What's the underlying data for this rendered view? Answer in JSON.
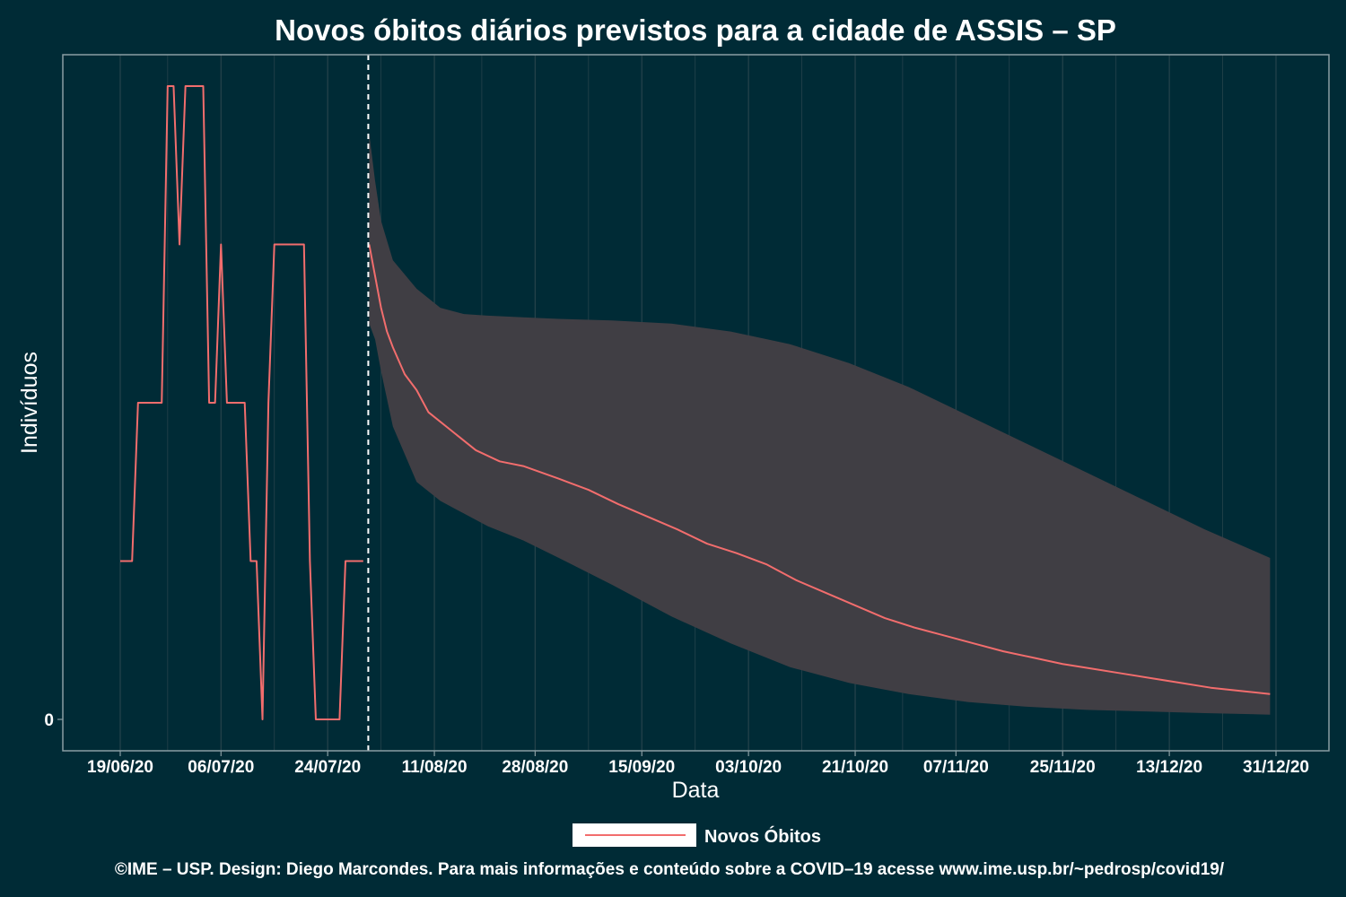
{
  "chart_data": {
    "type": "line",
    "title": "Novos óbitos diários previstos para a cidade de ASSIS – SP",
    "xlabel": "Data",
    "ylabel": "Indivíduos",
    "x_range": [
      "2020-06-19",
      "2020-12-31"
    ],
    "y_range": [
      0,
      4
    ],
    "x_ticks": [
      "19/06/20",
      "06/07/20",
      "24/07/20",
      "11/08/20",
      "28/08/20",
      "15/09/20",
      "03/10/20",
      "21/10/20",
      "07/11/20",
      "25/11/20",
      "13/12/20",
      "31/12/20"
    ],
    "y_ticks": [
      "0"
    ],
    "forecast_start": "2020-07-31",
    "legend": {
      "position": "bottom",
      "entries": [
        "Novos Óbitos"
      ]
    },
    "grid": true,
    "colors": {
      "background": "#002b36",
      "line": "#f26d6d",
      "band": "#403e44",
      "axis": "#8a9ea3",
      "grid": "#26434c"
    },
    "series": [
      {
        "name": "Novos Óbitos",
        "kind": "observed",
        "x": [
          "2020-06-19",
          "2020-06-21",
          "2020-06-22",
          "2020-06-26",
          "2020-06-27",
          "2020-06-28",
          "2020-06-29",
          "2020-06-30",
          "2020-07-03",
          "2020-07-04",
          "2020-07-05",
          "2020-07-06",
          "2020-07-07",
          "2020-07-10",
          "2020-07-11",
          "2020-07-12",
          "2020-07-13",
          "2020-07-14",
          "2020-07-15",
          "2020-07-20",
          "2020-07-21",
          "2020-07-22",
          "2020-07-26",
          "2020-07-27",
          "2020-07-30"
        ],
        "y": [
          1,
          1,
          2,
          2,
          4,
          4,
          3,
          4,
          4,
          2,
          2,
          3,
          2,
          2,
          1,
          1,
          0,
          2,
          3,
          3,
          1,
          0,
          0,
          1,
          1
        ]
      },
      {
        "name": "Novos Óbitos",
        "kind": "forecast",
        "x": [
          "2020-07-31",
          "2020-08-01",
          "2020-08-02",
          "2020-08-03",
          "2020-08-04",
          "2020-08-06",
          "2020-08-08",
          "2020-08-10",
          "2020-08-14",
          "2020-08-18",
          "2020-08-22",
          "2020-08-26",
          "2020-09-01",
          "2020-09-06",
          "2020-09-11",
          "2020-09-16",
          "2020-09-21",
          "2020-09-26",
          "2020-10-01",
          "2020-10-06",
          "2020-10-11",
          "2020-10-16",
          "2020-10-21",
          "2020-10-26",
          "2020-10-31",
          "2020-11-05",
          "2020-11-10",
          "2020-11-15",
          "2020-11-20",
          "2020-11-25",
          "2020-11-30",
          "2020-12-05",
          "2020-12-10",
          "2020-12-15",
          "2020-12-20",
          "2020-12-25",
          "2020-12-30"
        ],
        "y": [
          3.0,
          2.8,
          2.6,
          2.45,
          2.35,
          2.18,
          2.08,
          1.94,
          1.82,
          1.7,
          1.63,
          1.6,
          1.52,
          1.45,
          1.36,
          1.28,
          1.2,
          1.11,
          1.05,
          0.98,
          0.88,
          0.8,
          0.72,
          0.64,
          0.58,
          0.53,
          0.48,
          0.43,
          0.39,
          0.35,
          0.32,
          0.29,
          0.26,
          0.23,
          0.2,
          0.18,
          0.16
        ]
      }
    ],
    "band": {
      "x": [
        "2020-07-31",
        "2020-08-01",
        "2020-08-02",
        "2020-08-04",
        "2020-08-08",
        "2020-08-12",
        "2020-08-16",
        "2020-08-20",
        "2020-08-26",
        "2020-09-01",
        "2020-09-10",
        "2020-09-20",
        "2020-09-30",
        "2020-10-10",
        "2020-10-20",
        "2020-10-30",
        "2020-11-09",
        "2020-11-19",
        "2020-11-29",
        "2020-12-09",
        "2020-12-19",
        "2020-12-30"
      ],
      "upper": [
        3.7,
        3.4,
        3.15,
        2.9,
        2.72,
        2.6,
        2.56,
        2.55,
        2.54,
        2.53,
        2.52,
        2.5,
        2.45,
        2.37,
        2.25,
        2.1,
        1.92,
        1.74,
        1.56,
        1.38,
        1.2,
        1.02
      ],
      "lower": [
        2.5,
        2.4,
        2.2,
        1.85,
        1.5,
        1.38,
        1.3,
        1.22,
        1.13,
        1.02,
        0.85,
        0.65,
        0.48,
        0.33,
        0.23,
        0.16,
        0.11,
        0.08,
        0.06,
        0.05,
        0.04,
        0.03
      ]
    }
  },
  "legend_label": "Novos Óbitos",
  "footer": "©IME – USP. Design: Diego Marcondes. Para mais informações e conteúdo sobre a COVID–19 acesse www.ime.usp.br/~pedrosp/covid19/"
}
